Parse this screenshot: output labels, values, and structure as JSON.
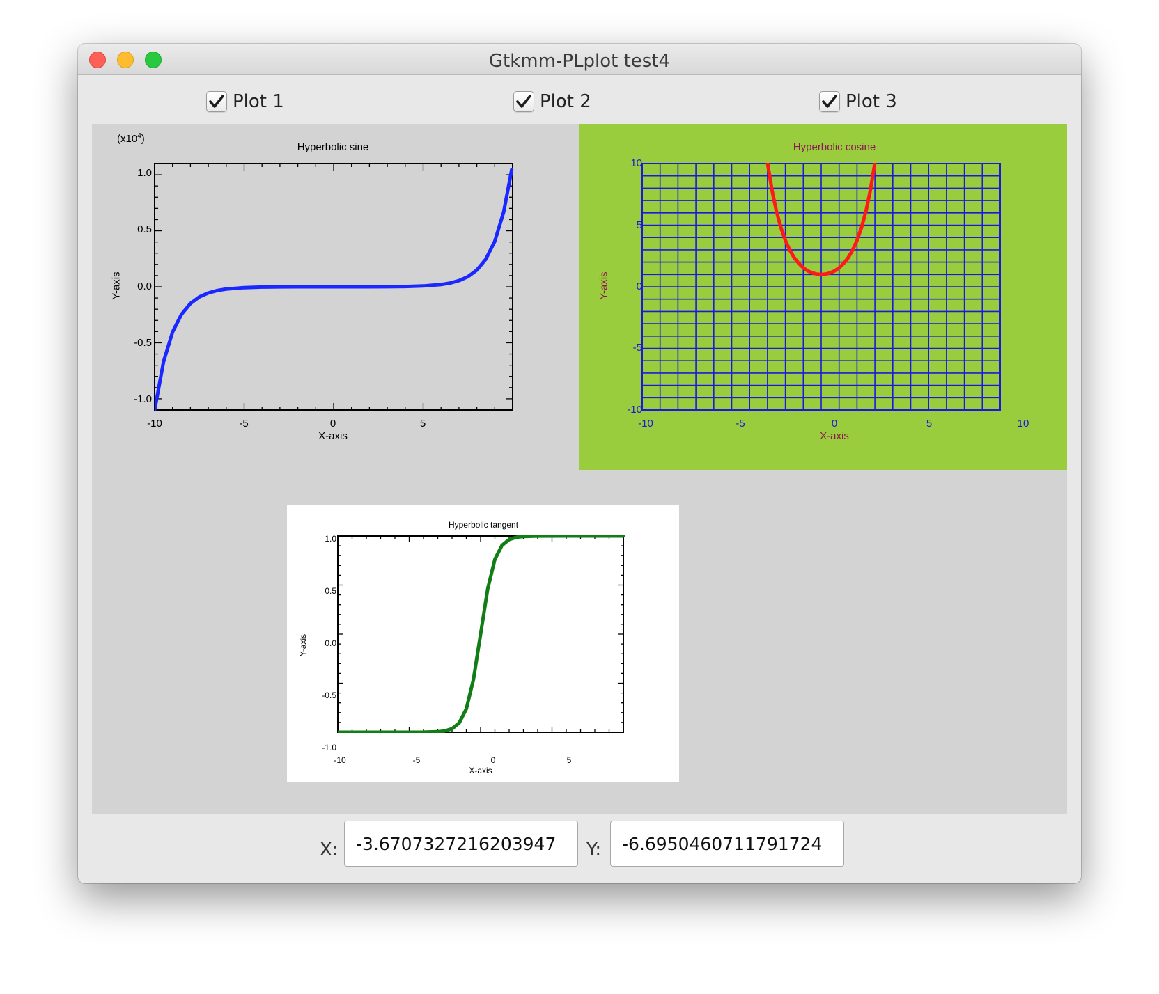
{
  "window": {
    "title": "Gtkmm-PLplot test4"
  },
  "toggles": [
    {
      "label": "Plot 1",
      "checked": true
    },
    {
      "label": "Plot 2",
      "checked": true
    },
    {
      "label": "Plot 3",
      "checked": true
    }
  ],
  "coords": {
    "x_label": "X:",
    "x_value": "-3.6707327216203947",
    "y_label": "Y:",
    "y_value": "-6.6950460711791724"
  },
  "icons": {
    "close": "close-light-icon",
    "minimize": "minimize-light-icon",
    "zoom": "zoom-light-icon",
    "check": "checkmark-icon"
  },
  "colors": {
    "plot_area_bg": "#d3d3d3",
    "sinh_line": "#1a28ff",
    "cosh_bg": "#9acd3e",
    "cosh_axes": "#1a1adc",
    "cosh_line": "#ff1a1a",
    "cosh_text": "#8b1a52",
    "tanh_line": "#117d14"
  },
  "chart_data": [
    {
      "type": "line",
      "title": "Hyperbolic sine",
      "xlabel": "X-axis",
      "ylabel": "Y-axis",
      "y_multiplier": "(x10",
      "y_multiplier_exp": "4",
      "y_multiplier_close": ")",
      "xlim": [
        -10,
        10
      ],
      "ylim": [
        -1.1,
        1.1
      ],
      "xticks": [
        -10,
        -5,
        0,
        5
      ],
      "xtick_labels": [
        "-10",
        "-5",
        "0",
        "5"
      ],
      "yticks": [
        1.0,
        0.5,
        0.0,
        -0.5,
        -1.0
      ],
      "ytick_labels": [
        "1.0",
        "0.5",
        "0.0",
        "-0.5",
        "-1.0"
      ],
      "series": [
        {
          "x": [
            -10,
            -9.5,
            -9,
            -8.5,
            -8,
            -7.5,
            -7,
            -6.5,
            -6,
            -5,
            -4,
            -3,
            -2,
            -1,
            0,
            1,
            2,
            3,
            4,
            5,
            6,
            6.5,
            7,
            7.5,
            8,
            8.5,
            9,
            9.5,
            9.95
          ],
          "y": [
            -1.101,
            -0.668,
            -0.405,
            -0.246,
            -0.149,
            -0.09,
            -0.055,
            -0.033,
            -0.02,
            -0.0074,
            -0.0027,
            -0.001,
            -0.0004,
            -0.0001,
            0,
            0.0001,
            0.0004,
            0.001,
            0.0027,
            0.0074,
            0.02,
            0.033,
            0.055,
            0.09,
            0.149,
            0.246,
            0.405,
            0.668,
            1.047
          ]
        }
      ],
      "grid": false
    },
    {
      "type": "line",
      "title": "Hyperbolic cosine",
      "xlabel": "X-axis",
      "ylabel": "Y-axis",
      "xlim": [
        -10,
        10
      ],
      "ylim": [
        -10,
        10
      ],
      "xticks": [
        -10,
        -5,
        0,
        5,
        10
      ],
      "xtick_labels": [
        "-10",
        "-5",
        "0",
        "5",
        "10"
      ],
      "yticks": [
        10,
        5,
        0,
        -5,
        -10
      ],
      "ytick_labels": [
        "10",
        "5",
        "0",
        "-5",
        "-10"
      ],
      "series": [
        {
          "x": [
            -3.0,
            -2.75,
            -2.5,
            -2.25,
            -2.0,
            -1.75,
            -1.5,
            -1.25,
            -1.0,
            -0.75,
            -0.5,
            -0.25,
            0,
            0.25,
            0.5,
            0.75,
            1.0,
            1.25,
            1.5,
            1.75,
            2.0,
            2.25,
            2.5,
            2.75,
            3.0
          ],
          "y": [
            10.07,
            7.86,
            6.13,
            4.8,
            3.76,
            2.96,
            2.35,
            1.89,
            1.54,
            1.29,
            1.13,
            1.03,
            1.0,
            1.03,
            1.13,
            1.29,
            1.54,
            1.89,
            2.35,
            2.96,
            3.76,
            4.8,
            6.13,
            7.86,
            10.07
          ]
        }
      ],
      "grid": true
    },
    {
      "type": "line",
      "title": "Hyperbolic tangent",
      "xlabel": "X-axis",
      "ylabel": "Y-axis",
      "xlim": [
        -10,
        10
      ],
      "ylim": [
        -1.0,
        1.0
      ],
      "xticks": [
        -10,
        -5,
        0,
        5
      ],
      "xtick_labels": [
        "-10",
        "-5",
        "0",
        "5"
      ],
      "yticks": [
        1.0,
        0.5,
        0.0,
        -0.5,
        -1.0
      ],
      "ytick_labels": [
        "1.0",
        "0.5",
        "0.0",
        "-0.5",
        "-1.0"
      ],
      "series": [
        {
          "x": [
            -10,
            -6,
            -4,
            -3,
            -2.5,
            -2,
            -1.5,
            -1,
            -0.5,
            0,
            0.5,
            1,
            1.5,
            2,
            2.5,
            3,
            4,
            6,
            10
          ],
          "y": [
            -1.0,
            -1.0,
            -0.9993,
            -0.995,
            -0.987,
            -0.964,
            -0.905,
            -0.762,
            -0.462,
            0,
            0.462,
            0.762,
            0.905,
            0.964,
            0.987,
            0.995,
            0.9993,
            1.0,
            1.0
          ]
        }
      ],
      "grid": false
    }
  ]
}
